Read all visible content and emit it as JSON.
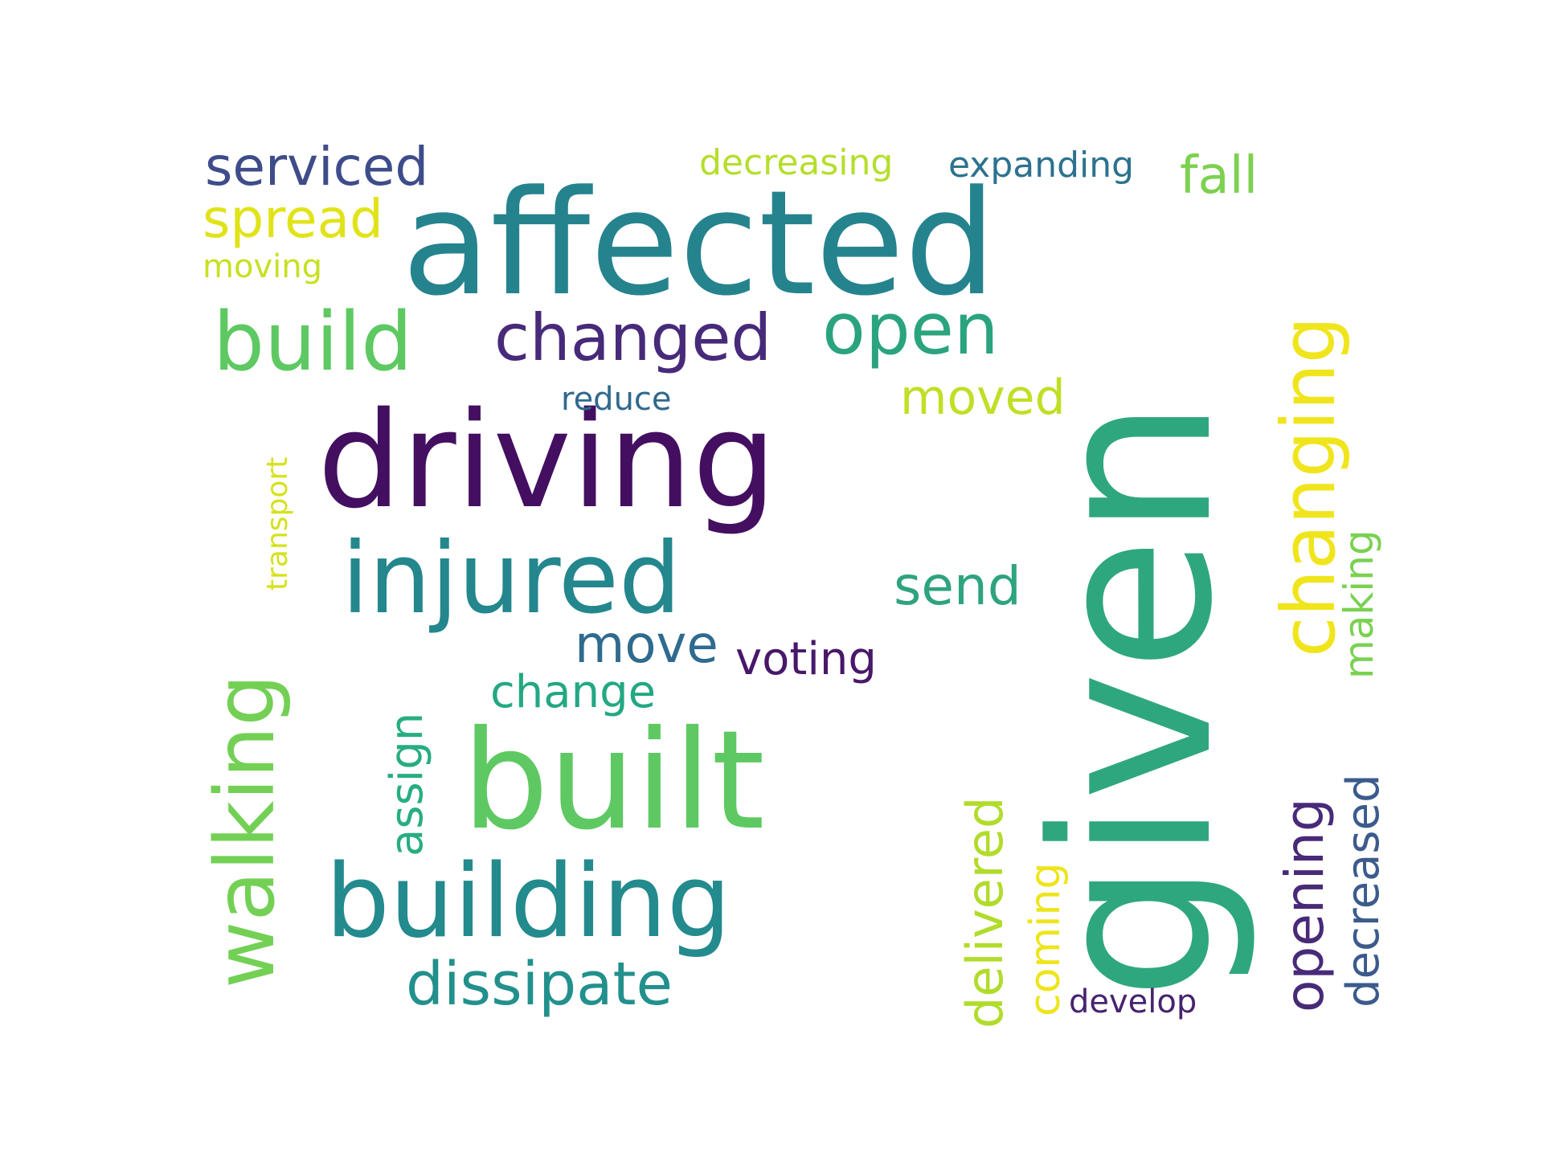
{
  "words": [
    {
      "text": "given",
      "color": "#2fa77e",
      "vertical": true
    },
    {
      "text": "affected",
      "color": "#25838e",
      "vertical": false
    },
    {
      "text": "driving",
      "color": "#440f60",
      "vertical": false
    },
    {
      "text": "built",
      "color": "#5ec962",
      "vertical": false
    },
    {
      "text": "building",
      "color": "#238a8d",
      "vertical": false
    },
    {
      "text": "injured",
      "color": "#23878d",
      "vertical": false
    },
    {
      "text": "walking",
      "color": "#73d055",
      "vertical": true
    },
    {
      "text": "changing",
      "color": "#f0e51c",
      "vertical": true
    },
    {
      "text": "build",
      "color": "#5ec962",
      "vertical": false
    },
    {
      "text": "open",
      "color": "#2aa37f",
      "vertical": false
    },
    {
      "text": "changed",
      "color": "#472a7a",
      "vertical": false
    },
    {
      "text": "dissipate",
      "color": "#22908c",
      "vertical": false
    },
    {
      "text": "opening",
      "color": "#482a78",
      "vertical": true
    },
    {
      "text": "delivered",
      "color": "#b1dc2b",
      "vertical": true
    },
    {
      "text": "serviced",
      "color": "#3e4c8a",
      "vertical": false
    },
    {
      "text": "spread",
      "color": "#e1e31a",
      "vertical": false
    },
    {
      "text": "move",
      "color": "#2f6b8e",
      "vertical": false
    },
    {
      "text": "decreased",
      "color": "#3c5b8c",
      "vertical": true
    },
    {
      "text": "send",
      "color": "#2ea37f",
      "vertical": false
    },
    {
      "text": "fall",
      "color": "#7cd150",
      "vertical": false
    },
    {
      "text": "moved",
      "color": "#c0df25",
      "vertical": false
    },
    {
      "text": "voting",
      "color": "#48186a",
      "vertical": false
    },
    {
      "text": "change",
      "color": "#23a883",
      "vertical": false
    },
    {
      "text": "assign",
      "color": "#27ad81",
      "vertical": true
    },
    {
      "text": "making",
      "color": "#7ad151",
      "vertical": true
    },
    {
      "text": "coming",
      "color": "#ede51b",
      "vertical": true
    },
    {
      "text": "decreasing",
      "color": "#b5de2b",
      "vertical": false
    },
    {
      "text": "expanding",
      "color": "#2c728e",
      "vertical": false
    },
    {
      "text": "moving",
      "color": "#c8e020",
      "vertical": false
    },
    {
      "text": "transport",
      "color": "#d5e21a",
      "vertical": true
    },
    {
      "text": "reduce",
      "color": "#30698e",
      "vertical": false
    },
    {
      "text": "develop",
      "color": "#46236f",
      "vertical": false
    }
  ]
}
